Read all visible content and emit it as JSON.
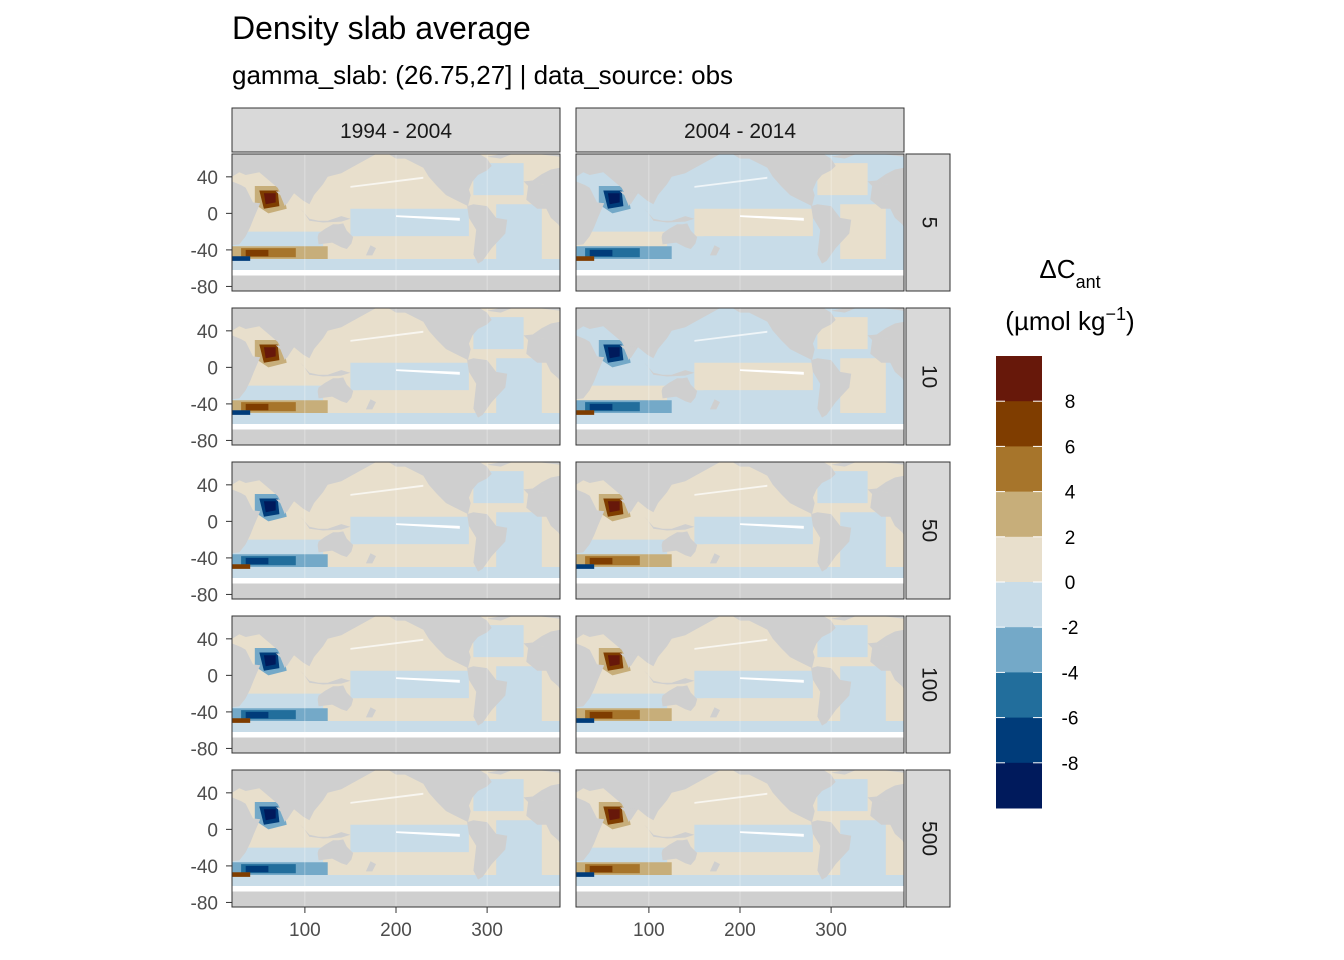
{
  "chart_data": {
    "type": "heatmap",
    "title": "Density slab average",
    "subtitle": "gamma_slab: (26.75,27] | data_source: obs",
    "facet_columns": [
      "1994 - 2004",
      "2004 - 2014"
    ],
    "facet_rows": [
      "5",
      "10",
      "50",
      "100",
      "500"
    ],
    "x_ticks": [
      100,
      200,
      300
    ],
    "y_ticks": [
      40,
      0,
      -40,
      -80
    ],
    "x_range": [
      20,
      380
    ],
    "y_range": [
      -85,
      65
    ],
    "legend": {
      "title_main": "ΔC",
      "title_sub": "ant",
      "unit_prefix": "(µmol kg",
      "unit_exp": "−1",
      "unit_suffix": ")",
      "breaks": [
        "8",
        "6",
        "4",
        "2",
        "0",
        "-2",
        "-4",
        "-6",
        "-8"
      ],
      "colors": [
        "#67180a",
        "#7f3d00",
        "#a7752b",
        "#c7ae7a",
        "#e8dfcc",
        "#c8dce8",
        "#74a9c8",
        "#226e9c",
        "#003c7a",
        "#001a5c"
      ],
      "position": "right"
    },
    "panels": [
      {
        "period": "1994 - 2004",
        "level": "5",
        "hotspot_sign": 1,
        "south_sign": 1,
        "basin_bias": 0
      },
      {
        "period": "2004 - 2014",
        "level": "5",
        "hotspot_sign": -1,
        "south_sign": -1,
        "basin_bias": -1
      },
      {
        "period": "1994 - 2004",
        "level": "10",
        "hotspot_sign": 1,
        "south_sign": 1,
        "basin_bias": 0
      },
      {
        "period": "2004 - 2014",
        "level": "10",
        "hotspot_sign": -1,
        "south_sign": -1,
        "basin_bias": -1
      },
      {
        "period": "1994 - 2004",
        "level": "50",
        "hotspot_sign": -1,
        "south_sign": -1,
        "basin_bias": 0
      },
      {
        "period": "2004 - 2014",
        "level": "50",
        "hotspot_sign": 1,
        "south_sign": 1,
        "basin_bias": 0
      },
      {
        "period": "1994 - 2004",
        "level": "100",
        "hotspot_sign": -1,
        "south_sign": -1,
        "basin_bias": 0
      },
      {
        "period": "2004 - 2014",
        "level": "100",
        "hotspot_sign": 1,
        "south_sign": 1,
        "basin_bias": 0
      },
      {
        "period": "1994 - 2004",
        "level": "500",
        "hotspot_sign": -1,
        "south_sign": -1,
        "basin_bias": 0
      },
      {
        "period": "2004 - 2014",
        "level": "500",
        "hotspot_sign": 1,
        "south_sign": 1,
        "basin_bias": 0
      }
    ]
  }
}
